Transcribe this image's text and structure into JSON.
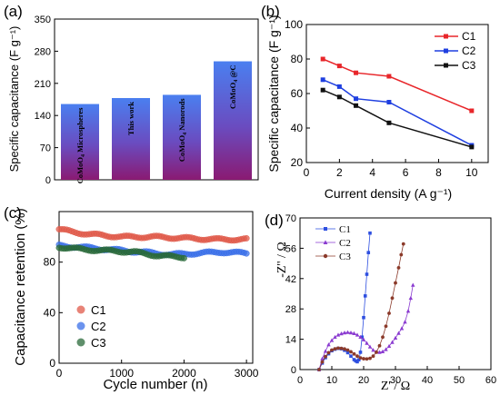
{
  "chart_data": [
    {
      "panel": "(a)",
      "type": "bar",
      "categories": [
        "CoMoO4 Microspheres",
        "This work",
        "CoMoO4 Nanorods",
        "CoMoO4@C"
      ],
      "category_labels": [
        {
          "main": "CoMoO",
          "sub": "4",
          "rest": " Microspheres"
        },
        {
          "main": "This work",
          "sub": "",
          "rest": ""
        },
        {
          "main": "CoMoO",
          "sub": "4",
          "rest": " Nanorods"
        },
        {
          "main": "CoMoO",
          "sub": "4",
          "rest": " @C"
        }
      ],
      "values": [
        165,
        178,
        185,
        258
      ],
      "ylabel": "Specific capacitance (F g⁻¹)",
      "ylim": [
        0,
        350
      ],
      "yticks": [
        0,
        70,
        140,
        210,
        280,
        350
      ],
      "gradient": [
        "#4a7ff0",
        "#8a1a72"
      ]
    },
    {
      "panel": "(b)",
      "type": "line",
      "x": [
        1,
        2,
        3,
        5,
        10
      ],
      "series": [
        {
          "name": "C1",
          "color": "#e8262a",
          "values": [
            80,
            76,
            72,
            70,
            50
          ]
        },
        {
          "name": "C2",
          "color": "#1f3fe0",
          "values": [
            68,
            64,
            57,
            55,
            30
          ]
        },
        {
          "name": "C3",
          "color": "#111111",
          "values": [
            62,
            58,
            53,
            43,
            29
          ]
        }
      ],
      "xlabel": "Current density (A g⁻¹)",
      "ylabel": "Specific capacitance (F g⁻¹)",
      "xlim": [
        0,
        11
      ],
      "ylim": [
        20,
        100
      ],
      "xticks": [
        0,
        2,
        4,
        6,
        8,
        10
      ],
      "yticks": [
        20,
        40,
        60,
        80,
        100
      ],
      "legend": "top-right"
    },
    {
      "panel": "(c)",
      "type": "scatter",
      "series": [
        {
          "name": "C1",
          "color": "#e05a4a",
          "x_start": 0,
          "x_end": 3000,
          "y_points": [
            [
              0,
              106
            ],
            [
              200,
              104
            ],
            [
              500,
              102
            ],
            [
              1000,
              100
            ],
            [
              1500,
              100
            ],
            [
              2000,
              99
            ],
            [
              2500,
              98
            ],
            [
              3000,
              98
            ]
          ]
        },
        {
          "name": "C2",
          "color": "#3a6fe8",
          "x_start": 0,
          "x_end": 3000,
          "y_points": [
            [
              0,
              93
            ],
            [
              300,
              92
            ],
            [
              800,
              90
            ],
            [
              1300,
              88
            ],
            [
              1800,
              86
            ],
            [
              2200,
              87
            ],
            [
              2600,
              88
            ],
            [
              3000,
              87
            ]
          ]
        },
        {
          "name": "C3",
          "color": "#2a6a3a",
          "x_start": 0,
          "x_end": 2000,
          "y_points": [
            [
              0,
              92
            ],
            [
              400,
              90
            ],
            [
              800,
              89
            ],
            [
              1200,
              88
            ],
            [
              1600,
              85
            ],
            [
              2000,
              84
            ]
          ]
        }
      ],
      "xlabel": "Cycle number (n)",
      "ylabel": "Capacitance retention (%)",
      "xlim": [
        0,
        3100
      ],
      "ylim": [
        0,
        120
      ],
      "xticks": [
        0,
        1000,
        2000,
        3000
      ],
      "yticks": [
        0,
        40,
        80
      ],
      "legend": "bottom-left"
    },
    {
      "panel": "(d)",
      "type": "scatter",
      "series": [
        {
          "name": "C1",
          "color": "#2e4fe0",
          "marker": "square",
          "points": [
            [
              6,
              0
            ],
            [
              7,
              3
            ],
            [
              8,
              5.5
            ],
            [
              9,
              7.3
            ],
            [
              10,
              8.7
            ],
            [
              11,
              9.4
            ],
            [
              12,
              9.8
            ],
            [
              13,
              9.6
            ],
            [
              14,
              8.9
            ],
            [
              15,
              7.8
            ],
            [
              16,
              6.2
            ],
            [
              17,
              4.6
            ],
            [
              17.5,
              4.0
            ],
            [
              18,
              3.6
            ],
            [
              18.5,
              4.5
            ],
            [
              19,
              8
            ],
            [
              19.5,
              15
            ],
            [
              20,
              24
            ],
            [
              20.5,
              34
            ],
            [
              21,
              44
            ],
            [
              21.5,
              54
            ],
            [
              22,
              63
            ]
          ]
        },
        {
          "name": "C2",
          "color": "#8a3ad0",
          "marker": "triangle",
          "points": [
            [
              6,
              0
            ],
            [
              7,
              5
            ],
            [
              8,
              8.5
            ],
            [
              9,
              11.5
            ],
            [
              10,
              13.5
            ],
            [
              11,
              15
            ],
            [
              12,
              16
            ],
            [
              13,
              16.6
            ],
            [
              14,
              17
            ],
            [
              15,
              17.2
            ],
            [
              16,
              17
            ],
            [
              17,
              16.7
            ],
            [
              18,
              16
            ],
            [
              19,
              15
            ],
            [
              20,
              13.8
            ],
            [
              21,
              12.2
            ],
            [
              22,
              10.5
            ],
            [
              23,
              9
            ],
            [
              24,
              8.2
            ],
            [
              25,
              8
            ],
            [
              26,
              8.3
            ],
            [
              27,
              9.3
            ],
            [
              28,
              10.8
            ],
            [
              29,
              12.6
            ],
            [
              30,
              14.6
            ],
            [
              31,
              16.8
            ],
            [
              32,
              19
            ],
            [
              33,
              22
            ],
            [
              34,
              27
            ],
            [
              34.8,
              33
            ],
            [
              35.5,
              39
            ]
          ]
        },
        {
          "name": "C3",
          "color": "#8b3a2a",
          "marker": "circle",
          "points": [
            [
              6,
              0
            ],
            [
              7,
              3.5
            ],
            [
              8,
              6
            ],
            [
              9,
              7.8
            ],
            [
              10,
              9
            ],
            [
              11,
              9.6
            ],
            [
              12,
              9.9
            ],
            [
              13,
              9.8
            ],
            [
              14,
              9.5
            ],
            [
              15,
              9
            ],
            [
              16,
              8.2
            ],
            [
              17,
              7.2
            ],
            [
              18,
              6.2
            ],
            [
              19,
              5.4
            ],
            [
              20,
              5
            ],
            [
              21,
              4.9
            ],
            [
              22,
              5.2
            ],
            [
              23,
              6.2
            ],
            [
              24,
              8
            ],
            [
              25,
              11
            ],
            [
              26,
              15
            ],
            [
              27,
              20
            ],
            [
              28,
              26
            ],
            [
              29,
              33
            ],
            [
              30,
              40
            ],
            [
              31,
              47
            ],
            [
              31.8,
              53
            ],
            [
              32.5,
              58
            ]
          ]
        }
      ],
      "xlabel": "Z' / Ω",
      "ylabel": "-Z'' / Ω",
      "xlim": [
        0,
        60
      ],
      "ylim": [
        0,
        70
      ],
      "xticks": [
        0,
        10,
        20,
        30,
        40,
        50,
        60
      ],
      "yticks": [
        0,
        14,
        28,
        42,
        56,
        70
      ],
      "legend": "top-left"
    }
  ]
}
